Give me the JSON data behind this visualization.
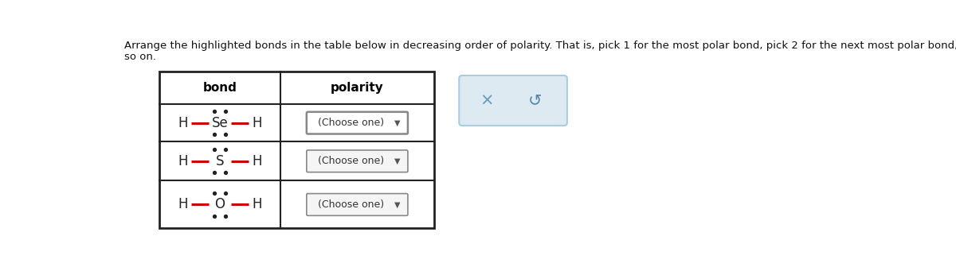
{
  "title_line1": "Arrange the highlighted bonds in the table below in decreasing order of polarity. That is, pick 1 for the most polar bond, pick 2 for the next most polar bond, and",
  "title_line2": "so on.",
  "col1_header": "bond",
  "col2_header": "polarity",
  "rows": [
    {
      "element": "Se"
    },
    {
      "element": "S"
    },
    {
      "element": "O"
    }
  ],
  "bg_color": "#ffffff",
  "table_border_color": "#222222",
  "header_text_color": "#000000",
  "bond_color_red": "#cc0000",
  "dropdown_border": "#888888",
  "dropdown_bg": "#f5f5f5",
  "dropdown_bg_first": "#ffffff",
  "side_box_bg": "#ddeaf2",
  "side_box_border": "#aaccdd",
  "x_color": "#6699bb",
  "s_color": "#5588aa"
}
